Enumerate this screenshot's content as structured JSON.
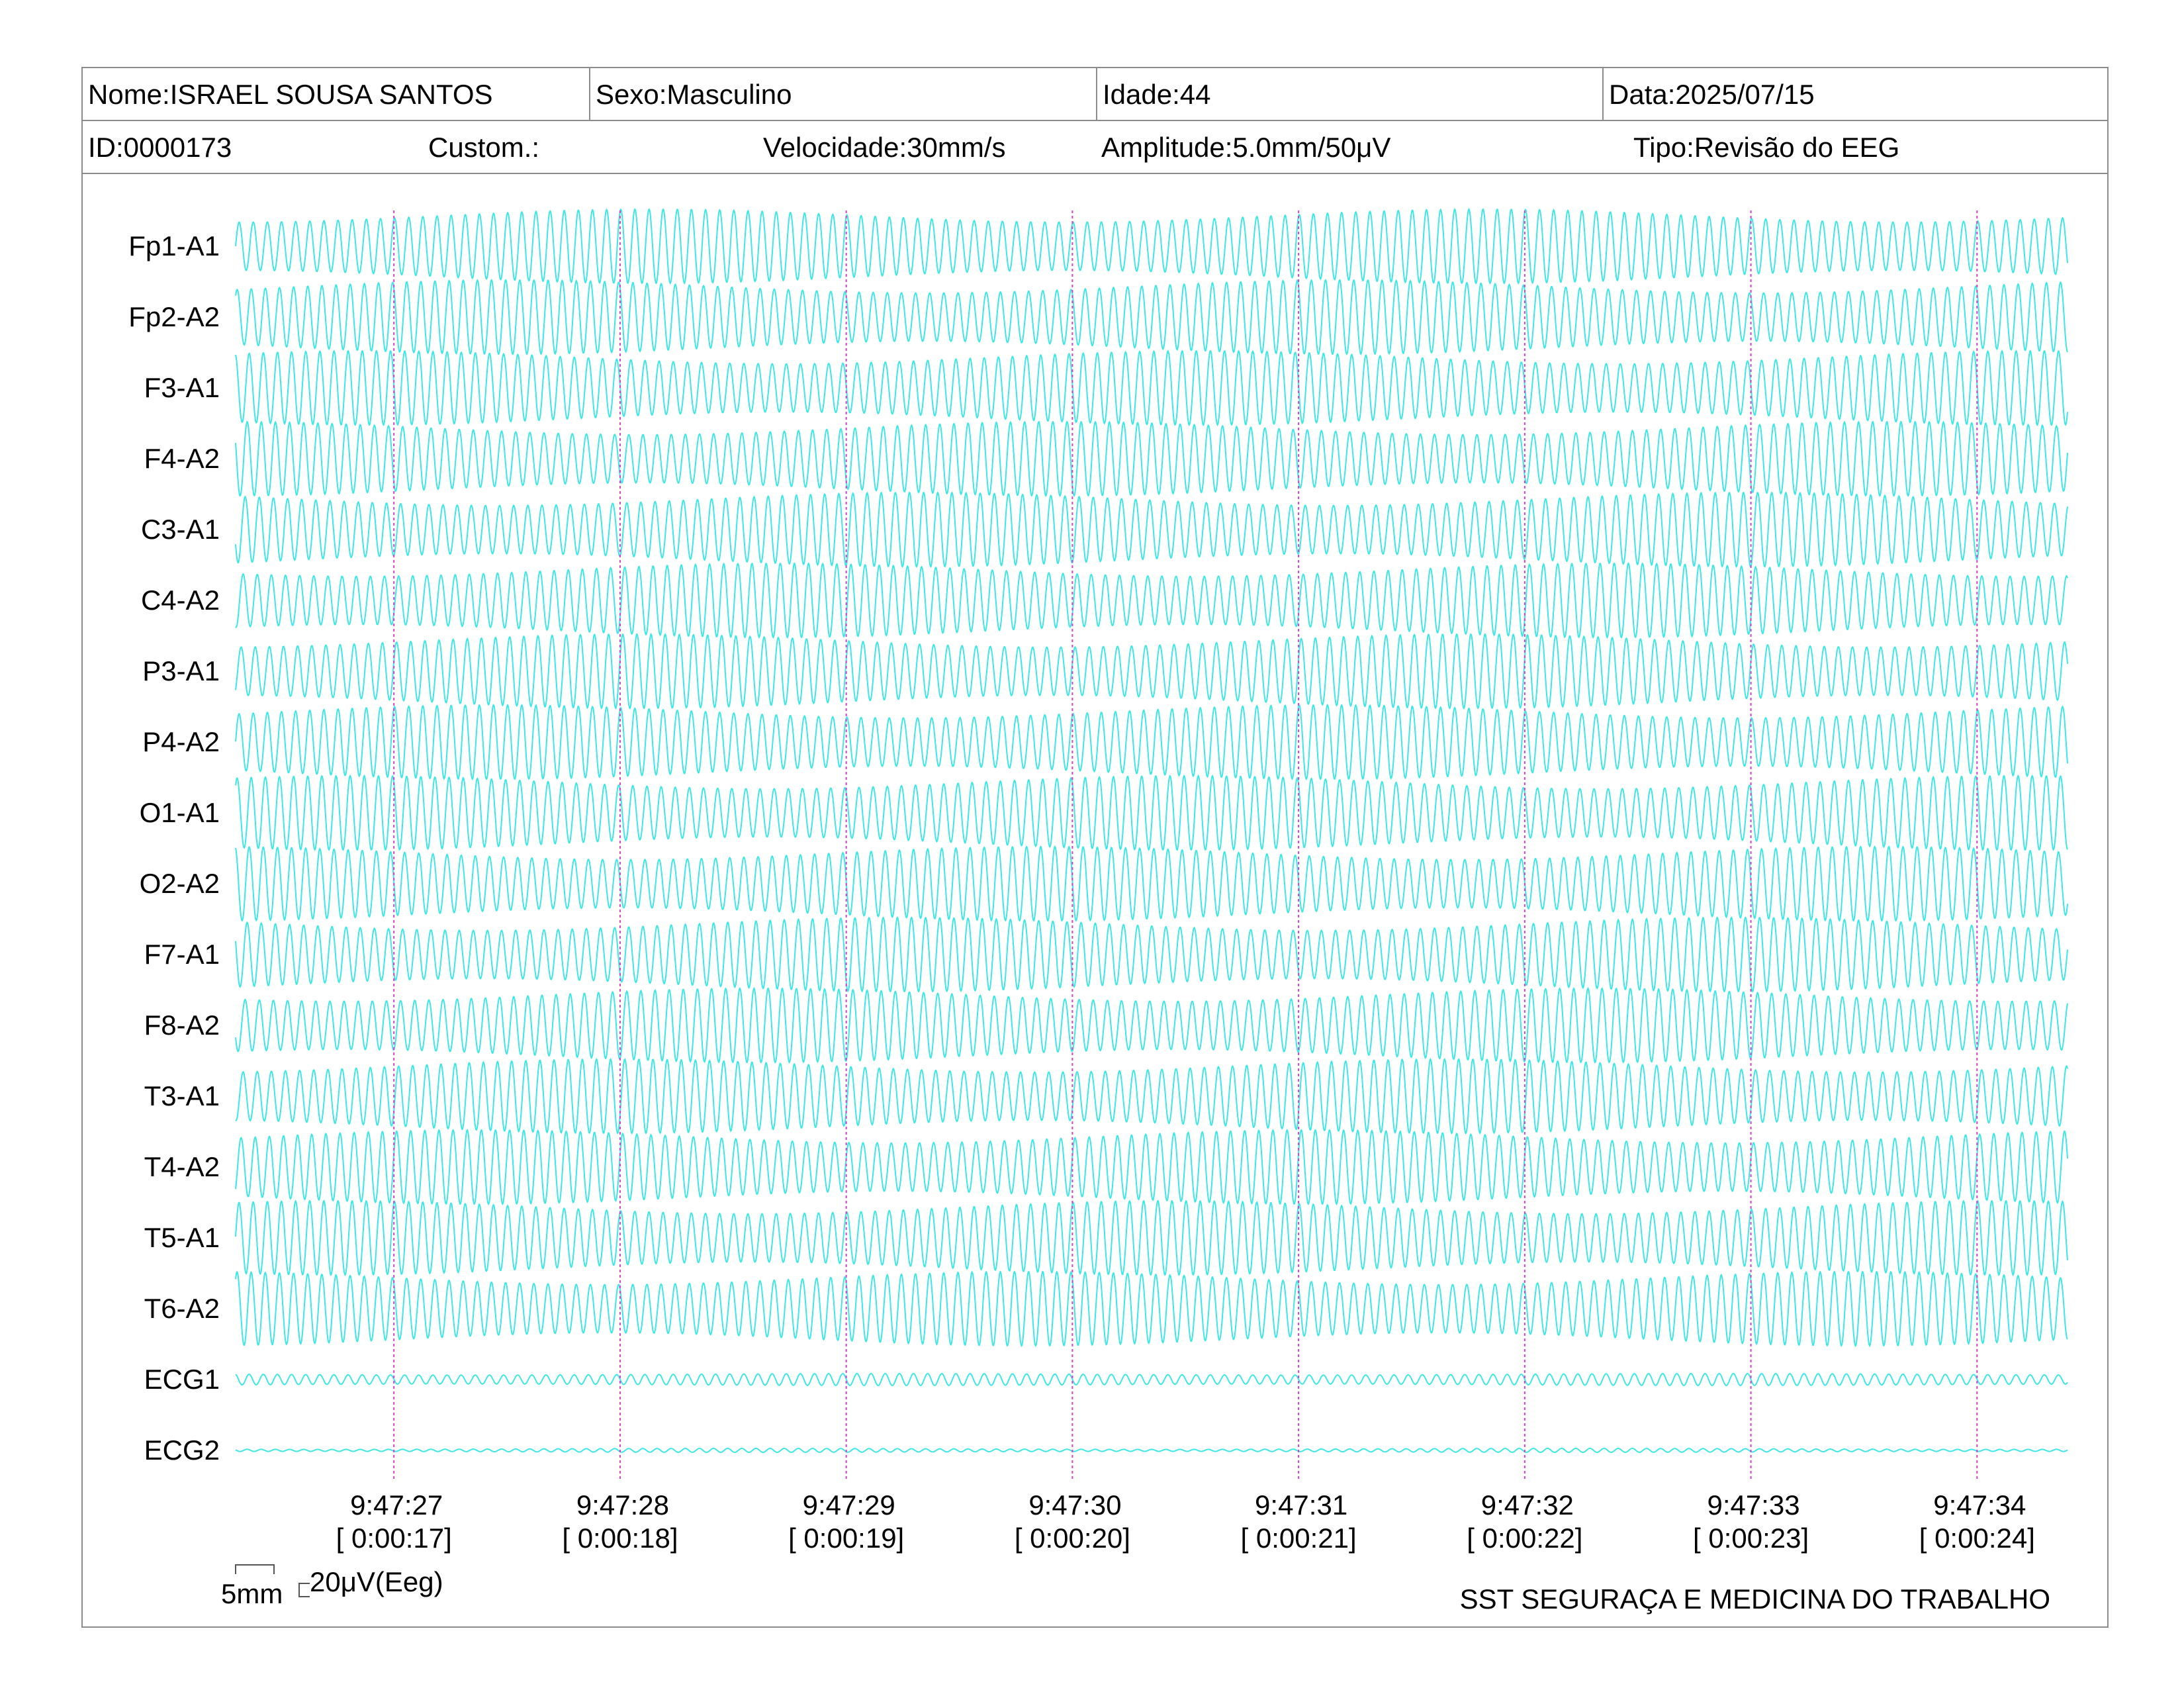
{
  "header": {
    "nome": "Nome:ISRAEL SOUSA SANTOS",
    "sexo": "Sexo:Masculino",
    "idade": "Idade:44",
    "data": "Data:2025/07/15",
    "id": "ID:0000173",
    "custom": "Custom.:",
    "velocidade": "Velocidade:30mm/s",
    "amplitude": "Amplitude:5.0mm/50μV",
    "tipo": "Tipo:Revisão do EEG"
  },
  "chart_data": {
    "type": "line",
    "channels": [
      "Fp1-A1",
      "Fp2-A2",
      "F3-A1",
      "F4-A2",
      "C3-A1",
      "C4-A2",
      "P3-A1",
      "P4-A2",
      "O1-A1",
      "O2-A2",
      "F7-A1",
      "F8-A2",
      "T3-A1",
      "T4-A2",
      "T5-A1",
      "T6-A2",
      "ECG1",
      "ECG2"
    ],
    "time_ticks": [
      "9:47:27",
      "9:47:28",
      "9:47:29",
      "9:47:30",
      "9:47:31",
      "9:47:32",
      "9:47:33",
      "9:47:34"
    ],
    "elapsed_ticks": [
      "[ 0:00:17]",
      "[ 0:00:18]",
      "[ 0:00:19]",
      "[ 0:00:20]",
      "[ 0:00:21]",
      "[ 0:00:22]",
      "[ 0:00:23]",
      "[ 0:00:24]"
    ],
    "time_range_s": [
      16.3,
      24.4
    ],
    "waveform_cycles_per_second": 16,
    "trace_color": "#3ee6e6",
    "marker_color": "#cc44cc"
  },
  "scale": {
    "time_label": "5mm",
    "amp_label": "20μV(Eeg)"
  },
  "footer": "SST SEGURAÇA E MEDICINA DO TRABALHO"
}
